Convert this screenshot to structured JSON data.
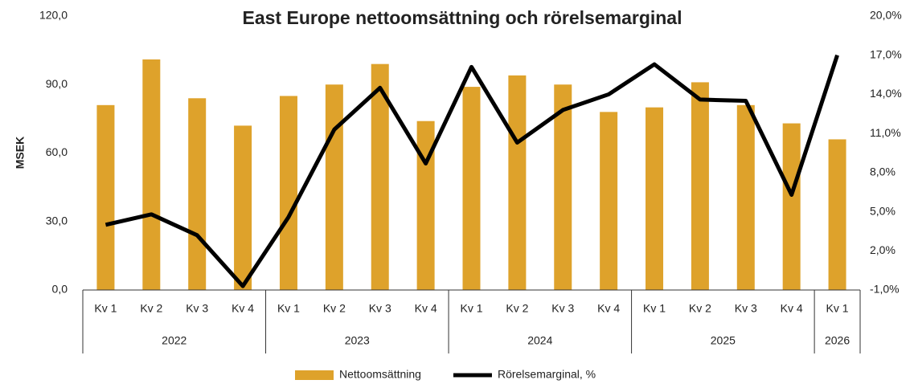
{
  "chart_data": {
    "type": "bar_line",
    "title": "East Europe nettoomsättning och rörelsemarginal",
    "y_label": "MSEK",
    "category_groups": [
      {
        "name": "2022",
        "categories": [
          "Kv 1",
          "Kv 2",
          "Kv 3",
          "Kv 4"
        ]
      },
      {
        "name": "2023",
        "categories": [
          "Kv 1",
          "Kv 2",
          "Kv 3",
          "Kv 4"
        ]
      },
      {
        "name": "2024",
        "categories": [
          "Kv 1",
          "Kv 2",
          "Kv 3",
          "Kv 4"
        ]
      },
      {
        "name": "2025",
        "categories": [
          "Kv 1",
          "Kv 2",
          "Kv 3",
          "Kv 4"
        ]
      },
      {
        "name": "2026",
        "categories": [
          "Kv 1"
        ]
      }
    ],
    "series": [
      {
        "name": "Nettoomsättning",
        "color": "#dea22b",
        "kind": "bar",
        "values": [
          81,
          101,
          84,
          72,
          85,
          90,
          99,
          74,
          89,
          94,
          90,
          78,
          80,
          91,
          81,
          73,
          66
        ]
      },
      {
        "name": "Rörelsemarginal, %",
        "color": "#000000",
        "kind": "line",
        "axis": "y2",
        "values": [
          4.0,
          4.8,
          3.2,
          -0.7,
          4.6,
          11.3,
          14.5,
          8.7,
          16.1,
          10.3,
          12.8,
          14.0,
          16.3,
          13.6,
          13.5,
          6.3,
          17.0
        ]
      }
    ],
    "ylim": [
      0,
      120
    ],
    "yticks": [
      {
        "value": 0,
        "label": "0,0"
      },
      {
        "value": 30,
        "label": "30,0"
      },
      {
        "value": 60,
        "label": "60,0"
      },
      {
        "value": 90,
        "label": "90,0"
      },
      {
        "value": 120,
        "label": "120,0"
      }
    ],
    "y2lim": [
      -1,
      20
    ],
    "y2ticks": [
      {
        "value": -1,
        "label": "-1,0%"
      },
      {
        "value": 2,
        "label": "2,0%"
      },
      {
        "value": 5,
        "label": "5,0%"
      },
      {
        "value": 8,
        "label": "8,0%"
      },
      {
        "value": 11,
        "label": "11,0%"
      },
      {
        "value": 14,
        "label": "14,0%"
      },
      {
        "value": 17,
        "label": "17,0%"
      },
      {
        "value": 20,
        "label": "20,0%"
      }
    ],
    "grid": false,
    "legend": "bottom"
  }
}
